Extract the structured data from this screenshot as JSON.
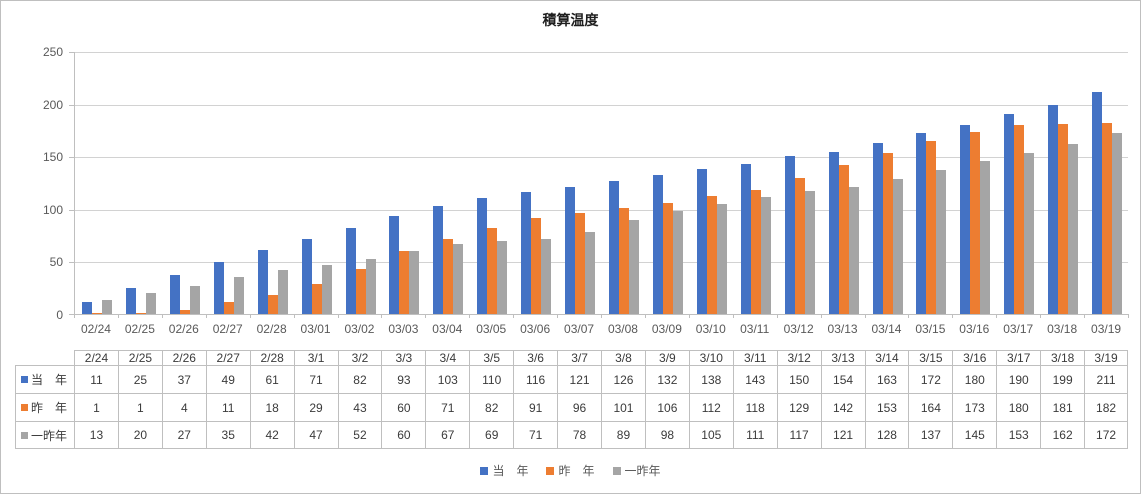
{
  "colors": {
    "series_blue": "#4472C4",
    "series_orange": "#ED7D31",
    "series_gray": "#A5A5A5",
    "gridline": "#D2D2D2",
    "axis_line": "#BFBFBF",
    "table_border": "#BFBFBF",
    "axis_text": "#595959",
    "table_text": "#3B3B3B"
  },
  "chart_data": {
    "type": "bar",
    "title": "積算温度",
    "xlabel": "",
    "ylabel": "",
    "ylim": [
      0,
      250
    ],
    "y_ticks": [
      0,
      50,
      100,
      150,
      200,
      250
    ],
    "grid": true,
    "legend_position": "bottom",
    "categories": [
      "02/24",
      "02/25",
      "02/26",
      "02/27",
      "02/28",
      "03/01",
      "03/02",
      "03/03",
      "03/04",
      "03/05",
      "03/06",
      "03/07",
      "03/08",
      "03/09",
      "03/10",
      "03/11",
      "03/12",
      "03/13",
      "03/14",
      "03/15",
      "03/16",
      "03/17",
      "03/18",
      "03/19"
    ],
    "series": [
      {
        "name": "当　年",
        "color": "#4472C4",
        "values": [
          11,
          25,
          37,
          49,
          61,
          71,
          82,
          93,
          103,
          110,
          116,
          121,
          126,
          132,
          138,
          143,
          150,
          154,
          163,
          172,
          180,
          190,
          199,
          211
        ]
      },
      {
        "name": "昨　年",
        "color": "#ED7D31",
        "values": [
          1,
          1,
          4,
          11,
          18,
          29,
          43,
          60,
          71,
          82,
          91,
          96,
          101,
          106,
          112,
          118,
          129,
          142,
          153,
          164,
          173,
          180,
          181,
          182
        ]
      },
      {
        "name": "一昨年",
        "color": "#A5A5A5",
        "values": [
          13,
          20,
          27,
          35,
          42,
          47,
          52,
          60,
          67,
          69,
          71,
          78,
          89,
          98,
          105,
          111,
          117,
          121,
          128,
          137,
          145,
          153,
          162,
          172
        ]
      }
    ]
  },
  "data_table": {
    "column_headers": [
      "2/24",
      "2/25",
      "2/26",
      "2/27",
      "2/28",
      "3/1",
      "3/2",
      "3/3",
      "3/4",
      "3/5",
      "3/6",
      "3/7",
      "3/8",
      "3/9",
      "3/10",
      "3/11",
      "3/12",
      "3/13",
      "3/14",
      "3/15",
      "3/16",
      "3/17",
      "3/18",
      "3/19"
    ]
  }
}
